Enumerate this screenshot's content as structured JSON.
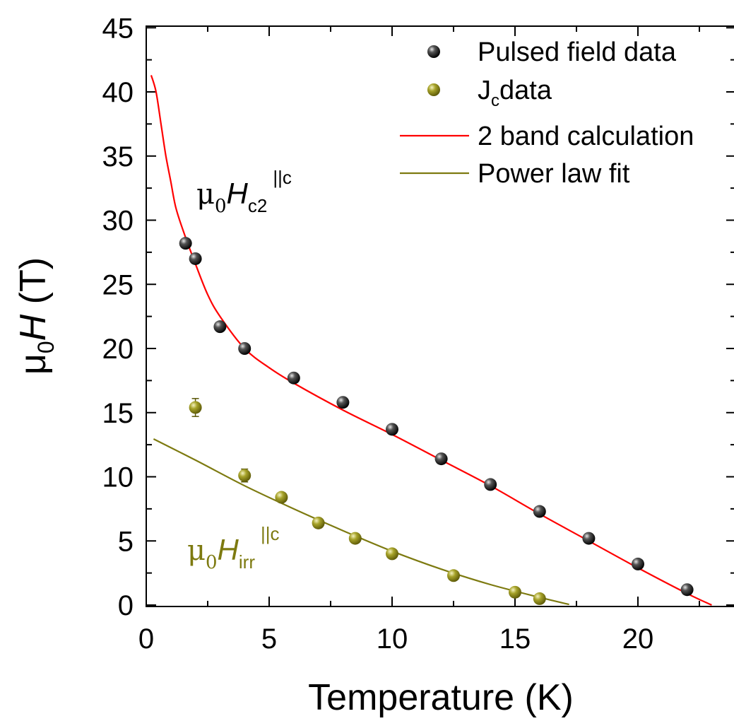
{
  "colors": {
    "pulsed": "#1a1a1a",
    "jc": "#8c8a14",
    "two_band": "#ff0000",
    "power_law": "#7d7a10",
    "axis": "#000000"
  },
  "chart_data": {
    "type": "scatter",
    "title": "",
    "xlabel": "Temperature (K)",
    "ylabel": {
      "mu": "μ",
      "sub": "0",
      "var": "H",
      "unit": " (T)"
    },
    "xlim": [
      0,
      24
    ],
    "ylim": [
      0,
      45
    ],
    "x_ticks": [
      0,
      5,
      10,
      15,
      20
    ],
    "y_ticks": [
      0,
      5,
      10,
      15,
      20,
      25,
      30,
      35,
      40,
      45
    ],
    "grid": false,
    "legend_position": "top-right",
    "legend": [
      {
        "label": "Pulsed field data",
        "kind": "marker",
        "series": "pulsed"
      },
      {
        "label_main": "J",
        "label_sub": "c",
        "label_rest": "data",
        "kind": "marker",
        "series": "jc"
      },
      {
        "label": "2 band calculation",
        "kind": "line",
        "series": "two_band"
      },
      {
        "label": "Power law fit",
        "kind": "line",
        "series": "power_law"
      }
    ],
    "annotations": {
      "hc2": {
        "mu": "μ",
        "sub": "0",
        "var": "H",
        "sub2": "c2",
        "sup": "||c"
      },
      "hirr": {
        "mu": "μ",
        "sub": "0",
        "var": "H",
        "sub2": "irr",
        "sup": "||c"
      }
    },
    "series": [
      {
        "name": "Pulsed field data",
        "kind": "scatter",
        "x": [
          1.6,
          2.0,
          3.0,
          4.0,
          6.0,
          8.0,
          10.0,
          12.0,
          14.0,
          16.0,
          18.0,
          20.0,
          22.0
        ],
        "y": [
          28.2,
          27.0,
          21.7,
          20.0,
          17.7,
          15.8,
          13.7,
          11.4,
          9.4,
          7.3,
          5.2,
          3.2,
          1.2
        ]
      },
      {
        "name": "Jc data",
        "kind": "scatter",
        "x": [
          2.0,
          4.0,
          5.5,
          7.0,
          8.5,
          10.0,
          12.5,
          15.0,
          16.0
        ],
        "y": [
          15.4,
          10.1,
          8.4,
          6.4,
          5.2,
          4.0,
          2.3,
          1.0,
          0.5
        ],
        "yerr": [
          0.7,
          0.5,
          0,
          0,
          0,
          0,
          0,
          0,
          0
        ]
      },
      {
        "name": "2 band calculation",
        "kind": "line",
        "x": [
          0.2,
          0.4,
          0.6,
          0.8,
          1.0,
          1.2,
          1.5,
          2.0,
          2.5,
          3.0,
          4.0,
          5.0,
          6.0,
          8.0,
          10.0,
          12.0,
          14.0,
          16.0,
          18.0,
          20.0,
          22.0,
          23.0
        ],
        "y": [
          41.3,
          40.0,
          37.5,
          35.0,
          33.0,
          31.0,
          29.2,
          26.6,
          24.2,
          22.5,
          20.0,
          18.5,
          17.3,
          15.2,
          13.3,
          11.3,
          9.3,
          7.1,
          5.0,
          2.9,
          0.9,
          0.0
        ]
      },
      {
        "name": "Power law fit",
        "kind": "line",
        "x": [
          0.3,
          2,
          4,
          6,
          8,
          10,
          12,
          14,
          16,
          17.2
        ],
        "y": [
          12.95,
          11.3,
          9.3,
          7.5,
          5.8,
          4.2,
          2.8,
          1.6,
          0.6,
          0.05
        ]
      }
    ]
  }
}
